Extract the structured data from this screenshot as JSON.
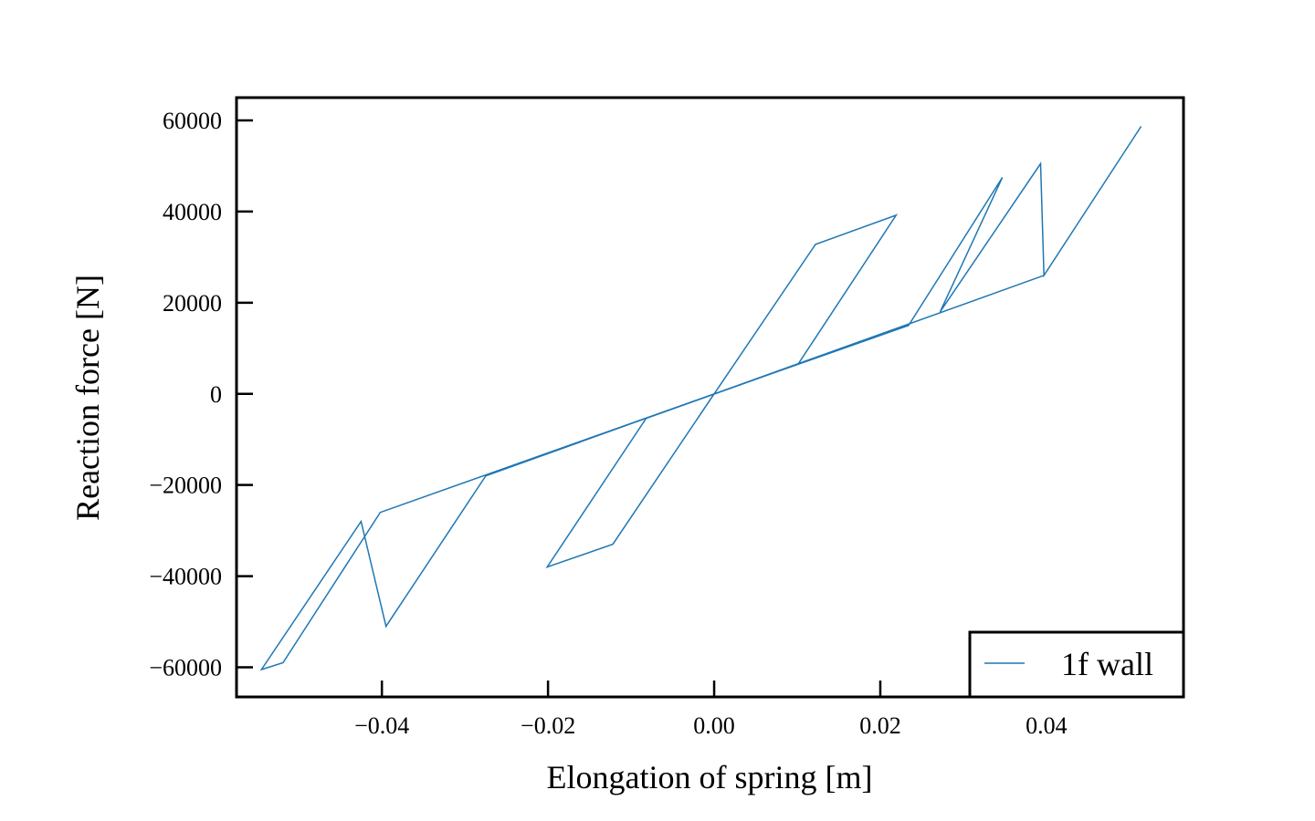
{
  "chart_data": {
    "type": "line",
    "title": "",
    "xlabel": "Elongation of spring [m]",
    "ylabel": "Reaction force [N]",
    "xlim": [
      -0.0575,
      0.0565
    ],
    "ylim": [
      -66500,
      65000
    ],
    "xticks": [
      -0.04,
      -0.02,
      0.0,
      0.02,
      0.04
    ],
    "xtick_labels": [
      "−0.04",
      "−0.02",
      "0.00",
      "0.02",
      "0.04"
    ],
    "yticks": [
      -60000,
      -40000,
      -20000,
      0,
      20000,
      40000,
      60000
    ],
    "ytick_labels": [
      "−60000",
      "−40000",
      "−20000",
      "0",
      "20000",
      "40000",
      "60000"
    ],
    "grid": false,
    "legend_position": "lower right",
    "series": [
      {
        "name": "1f wall",
        "color": "#1f77b4",
        "x": [
          0.0,
          0.0122,
          0.0219,
          0.0101,
          -0.0082,
          -0.0201,
          -0.0122,
          0.0,
          0.0234,
          0.0347,
          0.0272,
          0.0393,
          0.0397,
          0.0514,
          0.0397,
          0.0,
          -0.0275,
          -0.0395,
          -0.0425,
          -0.0545,
          -0.0519,
          -0.0402,
          0.0
        ],
        "y": [
          0,
          32800,
          39200,
          6500,
          -5400,
          -38000,
          -33000,
          0,
          15000,
          47500,
          18000,
          50500,
          26000,
          58700,
          26000,
          0,
          -18000,
          -51000,
          -28000,
          -60500,
          -59000,
          -26000,
          0
        ]
      }
    ]
  }
}
